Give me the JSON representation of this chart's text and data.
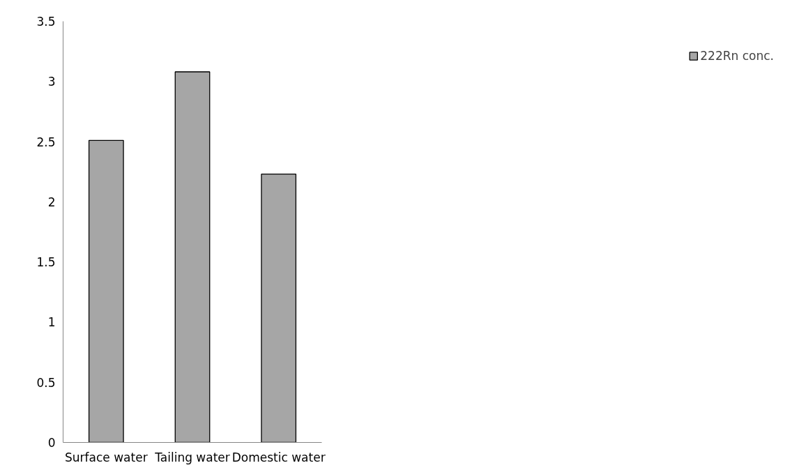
{
  "chart_data": {
    "type": "bar",
    "categories": [
      "Surface water",
      "Tailing water",
      "Domestic water"
    ],
    "series": [
      {
        "name": "222Rn conc.",
        "color": "#a6a6a6",
        "values": [
          2.51,
          3.08,
          2.23
        ]
      }
    ],
    "ylim": [
      0,
      3.5
    ],
    "yticks": [
      0,
      0.5,
      1,
      1.5,
      2,
      2.5,
      3,
      3.5
    ],
    "grid": false,
    "legend": "right"
  }
}
